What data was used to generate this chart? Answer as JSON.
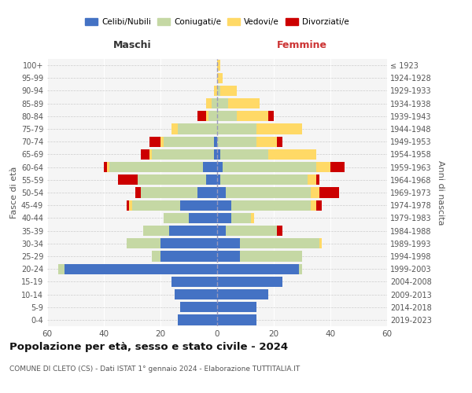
{
  "age_groups": [
    "0-4",
    "5-9",
    "10-14",
    "15-19",
    "20-24",
    "25-29",
    "30-34",
    "35-39",
    "40-44",
    "45-49",
    "50-54",
    "55-59",
    "60-64",
    "65-69",
    "70-74",
    "75-79",
    "80-84",
    "85-89",
    "90-94",
    "95-99",
    "100+"
  ],
  "birth_years": [
    "2019-2023",
    "2014-2018",
    "2009-2013",
    "2004-2008",
    "1999-2003",
    "1994-1998",
    "1989-1993",
    "1984-1988",
    "1979-1983",
    "1974-1978",
    "1969-1973",
    "1964-1968",
    "1959-1963",
    "1954-1958",
    "1949-1953",
    "1944-1948",
    "1939-1943",
    "1934-1938",
    "1929-1933",
    "1924-1928",
    "≤ 1923"
  ],
  "maschi": {
    "celibi": [
      14,
      13,
      15,
      16,
      54,
      20,
      20,
      17,
      10,
      13,
      7,
      4,
      5,
      1,
      1,
      0,
      0,
      0,
      0,
      0,
      0
    ],
    "coniugati": [
      0,
      0,
      0,
      0,
      2,
      3,
      12,
      9,
      9,
      17,
      20,
      24,
      33,
      22,
      18,
      14,
      3,
      2,
      0,
      0,
      0
    ],
    "vedovi": [
      0,
      0,
      0,
      0,
      0,
      0,
      0,
      0,
      0,
      1,
      0,
      0,
      1,
      1,
      1,
      2,
      1,
      2,
      1,
      0,
      0
    ],
    "divorziati": [
      0,
      0,
      0,
      0,
      0,
      0,
      0,
      0,
      0,
      1,
      2,
      7,
      1,
      3,
      4,
      0,
      3,
      0,
      0,
      0,
      0
    ]
  },
  "femmine": {
    "nubili": [
      14,
      14,
      18,
      23,
      29,
      8,
      8,
      3,
      5,
      5,
      3,
      1,
      2,
      1,
      0,
      0,
      0,
      0,
      0,
      0,
      0
    ],
    "coniugate": [
      0,
      0,
      0,
      0,
      1,
      22,
      28,
      18,
      7,
      28,
      30,
      31,
      33,
      17,
      14,
      14,
      7,
      4,
      1,
      0,
      0
    ],
    "vedove": [
      0,
      0,
      0,
      0,
      0,
      0,
      1,
      0,
      1,
      2,
      3,
      3,
      5,
      17,
      7,
      16,
      11,
      11,
      6,
      2,
      1
    ],
    "divorziate": [
      0,
      0,
      0,
      0,
      0,
      0,
      0,
      2,
      0,
      2,
      7,
      1,
      5,
      0,
      2,
      0,
      2,
      0,
      0,
      0,
      0
    ]
  },
  "colors": {
    "celibi_nubili": "#4472c4",
    "coniugati": "#c5d8a4",
    "vedovi": "#ffd966",
    "divorziati": "#cc0000"
  },
  "xlim": 60,
  "title": "Popolazione per età, sesso e stato civile - 2024",
  "subtitle": "COMUNE DI CLETO (CS) - Dati ISTAT 1° gennaio 2024 - Elaborazione TUTTITALIA.IT",
  "xlabel_left": "Maschi",
  "xlabel_right": "Femmine",
  "ylabel_left": "Fasce di età",
  "ylabel_right": "Anni di nascita",
  "legend_labels": [
    "Celibi/Nubili",
    "Coniugati/e",
    "Vedovi/e",
    "Divorziati/e"
  ],
  "background_color": "#ffffff",
  "plot_bg": "#f5f5f5"
}
